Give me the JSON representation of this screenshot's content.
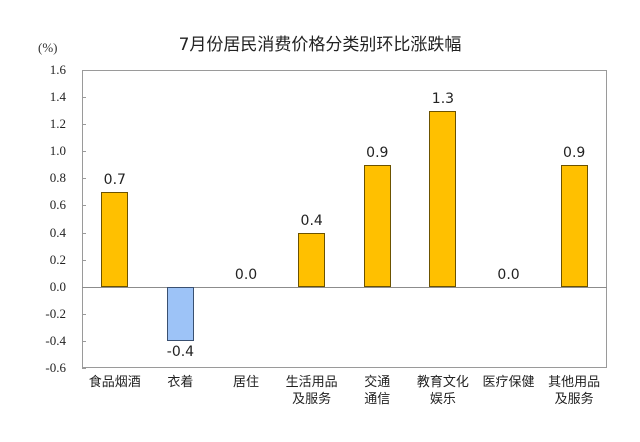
{
  "chart_data": {
    "type": "bar",
    "title": "7月份居民消费价格分类别环比涨跌幅",
    "ylabel": "(%)",
    "xlabel": "",
    "ylim": [
      -0.6,
      1.6
    ],
    "yticks": [
      "1.6",
      "1.4",
      "1.2",
      "1.0",
      "0.8",
      "0.6",
      "0.4",
      "0.2",
      "0.0",
      "-0.2",
      "-0.4",
      "-0.6"
    ],
    "categories": [
      "食品烟酒",
      "衣着",
      "居住",
      "生活用品及服务",
      "交通通信",
      "教育文化娱乐",
      "医疗保健",
      "其他用品及服务"
    ],
    "category_lines": [
      [
        "食品烟酒"
      ],
      [
        "衣着"
      ],
      [
        "居住"
      ],
      [
        "生活用品",
        "及服务"
      ],
      [
        "交通",
        "通信"
      ],
      [
        "教育文化",
        "娱乐"
      ],
      [
        "医疗保健"
      ],
      [
        "其他用品",
        "及服务"
      ]
    ],
    "values": [
      0.7,
      -0.4,
      0.0,
      0.4,
      0.9,
      1.3,
      0.0,
      0.9
    ],
    "value_labels": [
      "0.7",
      "-0.4",
      "0.0",
      "0.4",
      "0.9",
      "1.3",
      "0.0",
      "0.9"
    ],
    "grid": false,
    "legend": null,
    "colors": {
      "positive": "#FFC000",
      "negative": "#9DC3F7"
    }
  }
}
